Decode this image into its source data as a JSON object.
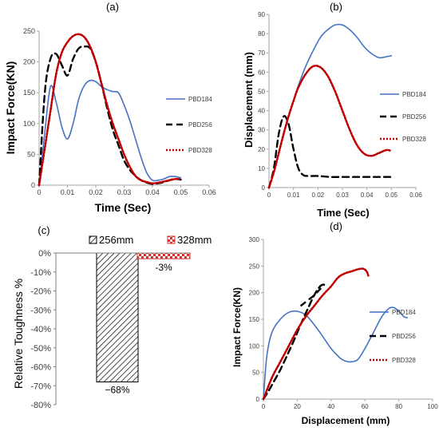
{
  "chart_data": [
    {
      "panel_label": "(a)",
      "type": "line",
      "xlabel": "Time (Sec)",
      "ylabel": "Impact Force(KN)",
      "xlim": [
        0,
        0.06
      ],
      "ylim": [
        0,
        250
      ],
      "xticks": [
        0,
        0.01,
        0.02,
        0.03,
        0.04,
        0.05,
        0.06
      ],
      "yticks": [
        0,
        50,
        100,
        150,
        200,
        250
      ],
      "xtick_labels": [
        "0",
        "0.01",
        "0.02",
        "0.03",
        "0.04",
        "0.05",
        "0.06"
      ],
      "ytick_labels": [
        "0",
        "50",
        "100",
        "150",
        "200",
        "250"
      ],
      "legend_position": "right",
      "series": [
        {
          "name": "PBD184",
          "color": "#4472c4",
          "style": "solid",
          "x": [
            0,
            0.002,
            0.004,
            0.006,
            0.008,
            0.01,
            0.012,
            0.014,
            0.016,
            0.018,
            0.02,
            0.022,
            0.024,
            0.026,
            0.028,
            0.03,
            0.032,
            0.034,
            0.036,
            0.038,
            0.04,
            0.042,
            0.044,
            0.046,
            0.048,
            0.05
          ],
          "y": [
            0,
            85,
            160,
            135,
            95,
            75,
            100,
            140,
            162,
            170,
            168,
            160,
            155,
            152,
            150,
            130,
            105,
            75,
            45,
            20,
            8,
            8,
            10,
            14,
            14,
            12
          ]
        },
        {
          "name": "PBD256",
          "color": "#000000",
          "style": "dashed",
          "x": [
            0,
            0.002,
            0.004,
            0.006,
            0.008,
            0.01,
            0.012,
            0.014,
            0.016,
            0.018,
            0.02,
            0.022,
            0.024,
            0.026,
            0.028,
            0.03,
            0.032,
            0.034,
            0.036,
            0.038,
            0.04,
            0.042,
            0.044,
            0.046,
            0.048,
            0.05
          ],
          "y": [
            0,
            150,
            205,
            213,
            195,
            178,
            205,
            222,
            225,
            222,
            200,
            165,
            125,
            90,
            65,
            40,
            25,
            15,
            8,
            4,
            2,
            3,
            5,
            8,
            10,
            9
          ]
        },
        {
          "name": "PBD328",
          "color": "#c00000",
          "style": "dotted",
          "x": [
            0,
            0.002,
            0.004,
            0.006,
            0.008,
            0.01,
            0.012,
            0.014,
            0.016,
            0.018,
            0.02,
            0.022,
            0.024,
            0.026,
            0.028,
            0.03,
            0.032,
            0.034,
            0.036,
            0.038,
            0.04,
            0.042,
            0.044,
            0.046,
            0.048,
            0.05
          ],
          "y": [
            0,
            60,
            120,
            180,
            215,
            232,
            242,
            245,
            240,
            225,
            200,
            165,
            130,
            100,
            75,
            50,
            30,
            15,
            8,
            5,
            3,
            4,
            6,
            8,
            10,
            10
          ]
        }
      ]
    },
    {
      "panel_label": "(b)",
      "type": "line",
      "xlabel": "Time (Sec)",
      "ylabel": "Displacement (mm)",
      "xlim": [
        0,
        0.06
      ],
      "ylim": [
        0,
        90
      ],
      "xticks": [
        0,
        0.01,
        0.02,
        0.03,
        0.04,
        0.05,
        0.06
      ],
      "yticks": [
        0,
        10,
        20,
        30,
        40,
        50,
        60,
        70,
        80,
        90
      ],
      "xtick_labels": [
        "0",
        "0.01",
        "0.02",
        "0.03",
        "0.04",
        "0.05",
        "0.06"
      ],
      "ytick_labels": [
        "0",
        "10",
        "20",
        "30",
        "40",
        "50",
        "60",
        "70",
        "80",
        "90"
      ],
      "legend_position": "right",
      "series": [
        {
          "name": "PBD184",
          "color": "#4472c4",
          "style": "solid",
          "x": [
            0,
            0.002,
            0.004,
            0.006,
            0.008,
            0.01,
            0.012,
            0.015,
            0.018,
            0.021,
            0.024,
            0.027,
            0.03,
            0.033,
            0.036,
            0.039,
            0.042,
            0.045,
            0.048,
            0.05
          ],
          "y": [
            0,
            8,
            18,
            28,
            37,
            45,
            53,
            63,
            71,
            78,
            82,
            84.5,
            84.5,
            82,
            78,
            73,
            69.5,
            67.5,
            68,
            68.5
          ]
        },
        {
          "name": "PBD256",
          "color": "#000000",
          "style": "dashed",
          "x": [
            0,
            0.002,
            0.004,
            0.006,
            0.008,
            0.01,
            0.012,
            0.014,
            0.016,
            0.02,
            0.025,
            0.03,
            0.035,
            0.04,
            0.045,
            0.05
          ],
          "y": [
            0,
            10,
            28,
            37,
            33,
            20,
            10,
            6.5,
            6,
            6,
            5.5,
            5.5,
            5.5,
            5.5,
            5.5,
            5.5
          ]
        },
        {
          "name": "PBD328",
          "color": "#c00000",
          "style": "dotted",
          "x": [
            0,
            0.002,
            0.004,
            0.006,
            0.008,
            0.01,
            0.012,
            0.015,
            0.018,
            0.021,
            0.024,
            0.027,
            0.03,
            0.033,
            0.036,
            0.039,
            0.042,
            0.045,
            0.048,
            0.05
          ],
          "y": [
            0,
            8,
            18,
            28,
            37,
            45,
            52,
            59,
            63,
            62.5,
            58,
            50,
            40,
            30,
            22,
            17.5,
            16.5,
            18,
            19.5,
            19
          ]
        }
      ]
    },
    {
      "panel_label": "(c)",
      "type": "bar",
      "ylabel": "Relative Toughness %",
      "ylim": [
        -80,
        0
      ],
      "yticks": [
        0,
        -10,
        -20,
        -30,
        -40,
        -50,
        -60,
        -70,
        -80
      ],
      "ytick_labels": [
        "0%",
        "-10%",
        "-20%",
        "-30%",
        "-40%",
        "-50%",
        "-60%",
        "-70%",
        "-80%"
      ],
      "legend_position": "top",
      "series": [
        {
          "name": "256mm",
          "values": [
            -68
          ],
          "data_label": "−68%",
          "pattern": "diagonal-hatch",
          "color": "#000000"
        },
        {
          "name": "328mm",
          "values": [
            -3
          ],
          "data_label": "-3%",
          "pattern": "checker",
          "color": "#d9302c"
        }
      ]
    },
    {
      "panel_label": "(d)",
      "type": "line",
      "xlabel": "Displacement (mm)",
      "ylabel": "Impact Force(KN)",
      "xlim": [
        0,
        100
      ],
      "ylim": [
        0,
        300
      ],
      "xticks": [
        0,
        20,
        40,
        60,
        80,
        100
      ],
      "yticks": [
        0,
        50,
        100,
        150,
        200,
        250,
        300
      ],
      "xtick_labels": [
        "0",
        "20",
        "40",
        "60",
        "80",
        "100"
      ],
      "ytick_labels": [
        "0",
        "50",
        "100",
        "150",
        "200",
        "250",
        "300"
      ],
      "legend_position": "right",
      "series": [
        {
          "name": "PBD184",
          "color": "#4472c4",
          "style": "solid",
          "x": [
            0,
            2,
            5,
            10,
            15,
            20,
            25,
            30,
            35,
            40,
            45,
            48,
            52,
            56,
            60,
            65,
            70,
            74,
            77,
            80,
            83,
            85
          ],
          "y": [
            0,
            80,
            125,
            150,
            163,
            165,
            158,
            140,
            118,
            95,
            78,
            72,
            70,
            75,
            95,
            125,
            155,
            170,
            172,
            165,
            155,
            153
          ]
        },
        {
          "name": "PBD256",
          "color": "#000000",
          "style": "dashed",
          "x": [
            0,
            3,
            6,
            10,
            14,
            18,
            22,
            26,
            30,
            33,
            35,
            37
          ],
          "y": [
            0,
            15,
            32,
            55,
            82,
            110,
            140,
            168,
            195,
            210,
            215,
            214
          ],
          "x2": [
            22,
            26,
            30,
            33,
            35,
            36
          ],
          "y2": [
            175,
            185,
            195,
            205,
            212,
            215
          ]
        },
        {
          "name": "PBD328",
          "color": "#c00000",
          "style": "dotted",
          "x": [
            0,
            5,
            10,
            15,
            20,
            25,
            30,
            35,
            40,
            44,
            48,
            52,
            56,
            59,
            61,
            62
          ],
          "y": [
            0,
            40,
            70,
            100,
            130,
            155,
            175,
            195,
            212,
            228,
            236,
            240,
            244,
            245,
            240,
            232
          ]
        }
      ]
    }
  ]
}
